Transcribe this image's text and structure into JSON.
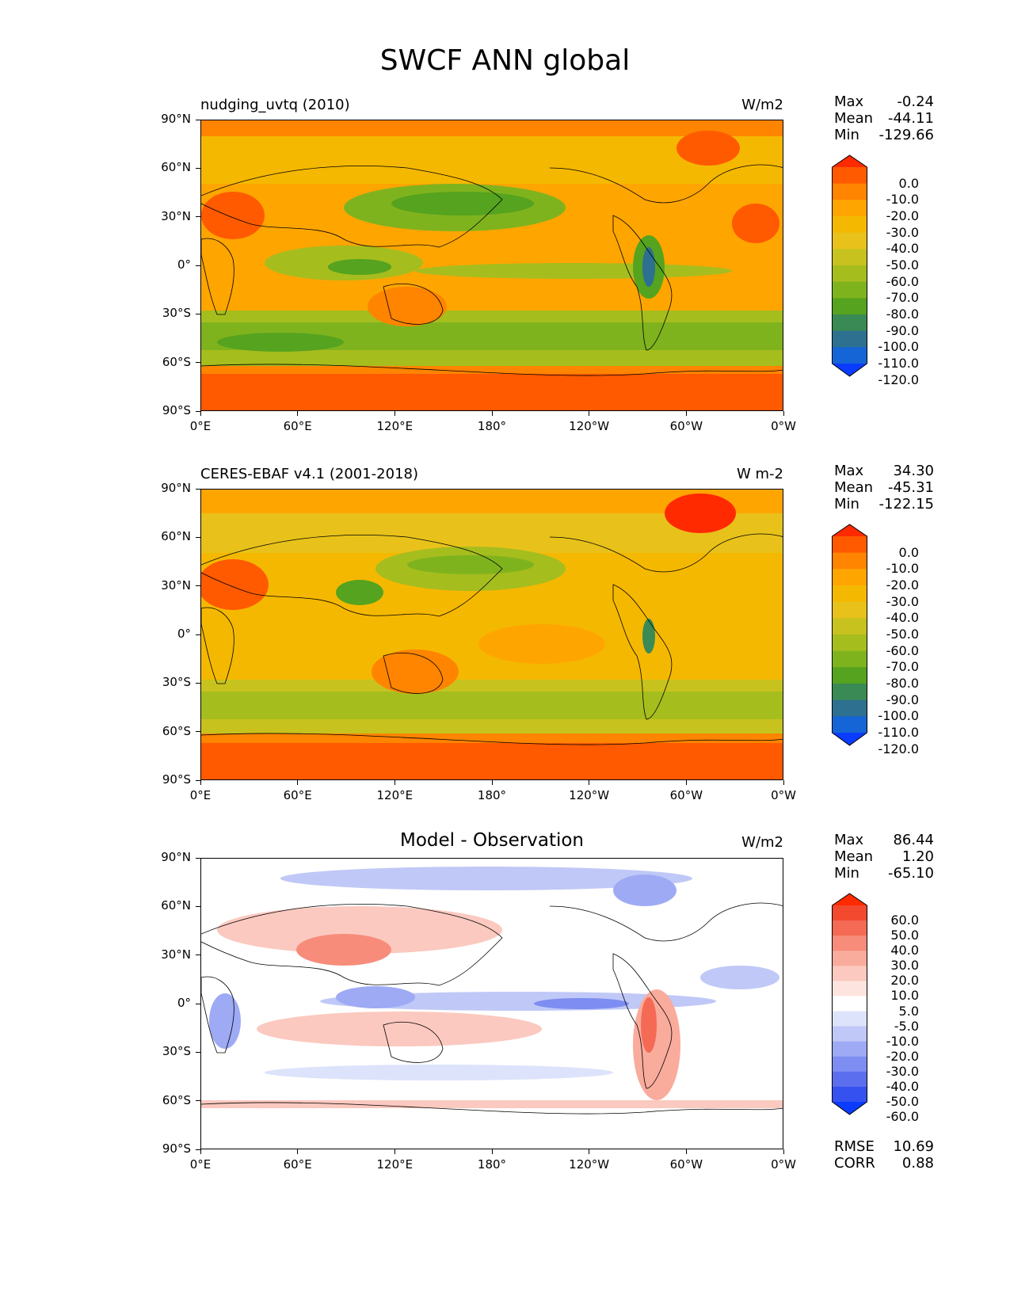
{
  "figure": {
    "title": "SWCF ANN global"
  },
  "axes": {
    "y_ticks": [
      "90°N",
      "60°N",
      "30°N",
      "0°",
      "30°S",
      "60°S",
      "90°S"
    ],
    "x_ticks": [
      "0°E",
      "60°E",
      "120°E",
      "180°",
      "120°W",
      "60°W",
      "0°W"
    ]
  },
  "panels": [
    {
      "label": "nudging_uvtq (2010)",
      "center_title": "",
      "units": "W/m2",
      "stats": [
        {
          "label": "Max",
          "value": "-0.24"
        },
        {
          "label": "Mean",
          "value": "-44.11"
        },
        {
          "label": "Min",
          "value": "-129.66"
        }
      ],
      "colorbar": {
        "labels": [
          "0.0",
          "-10.0",
          "-20.0",
          "-30.0",
          "-40.0",
          "-50.0",
          "-60.0",
          "-70.0",
          "-80.0",
          "-90.0",
          "-100.0",
          "-110.0",
          "-120.0"
        ],
        "colors": [
          "#ff2a00",
          "#ff5a00",
          "#ff8400",
          "#ffa500",
          "#f5b800",
          "#e8c21a",
          "#c8c21e",
          "#a6bd1e",
          "#7fb31e",
          "#55a31e",
          "#3a8a55",
          "#2d7090",
          "#1565d6",
          "#0a3cff"
        ]
      }
    },
    {
      "label": "CERES-EBAF v4.1 (2001-2018)",
      "center_title": "",
      "units": "W m-2",
      "stats": [
        {
          "label": "Max",
          "value": "34.30"
        },
        {
          "label": "Mean",
          "value": "-45.31"
        },
        {
          "label": "Min",
          "value": "-122.15"
        }
      ],
      "colorbar": {
        "labels": [
          "0.0",
          "-10.0",
          "-20.0",
          "-30.0",
          "-40.0",
          "-50.0",
          "-60.0",
          "-70.0",
          "-80.0",
          "-90.0",
          "-100.0",
          "-110.0",
          "-120.0"
        ],
        "colors": [
          "#ff2a00",
          "#ff5a00",
          "#ff8400",
          "#ffa500",
          "#f5b800",
          "#e8c21a",
          "#c8c21e",
          "#a6bd1e",
          "#7fb31e",
          "#55a31e",
          "#3a8a55",
          "#2d7090",
          "#1565d6",
          "#0a3cff"
        ]
      }
    },
    {
      "label": "",
      "center_title": "Model - Observation",
      "units": "W/m2",
      "stats": [
        {
          "label": "Max",
          "value": "86.44"
        },
        {
          "label": "Mean",
          "value": "1.20"
        },
        {
          "label": "Min",
          "value": "-65.10"
        }
      ],
      "colorbar": {
        "labels": [
          "60.0",
          "50.0",
          "40.0",
          "30.0",
          "20.0",
          "10.0",
          "5.0",
          "-5.0",
          "-10.0",
          "-20.0",
          "-30.0",
          "-40.0",
          "-50.0",
          "-60.0"
        ],
        "colors": [
          "#ff2a00",
          "#f2492f",
          "#f56a55",
          "#f78c7a",
          "#f9ab9c",
          "#fbc9bf",
          "#fde4de",
          "#ffffff",
          "#dde3fb",
          "#c0c8f7",
          "#9eaaf4",
          "#7d8df1",
          "#5b6fee",
          "#3551f0",
          "#0a3cff"
        ]
      },
      "extra_stats": [
        {
          "label": "RMSE",
          "value": "10.69"
        },
        {
          "label": "CORR",
          "value": "0.88"
        }
      ]
    }
  ]
}
